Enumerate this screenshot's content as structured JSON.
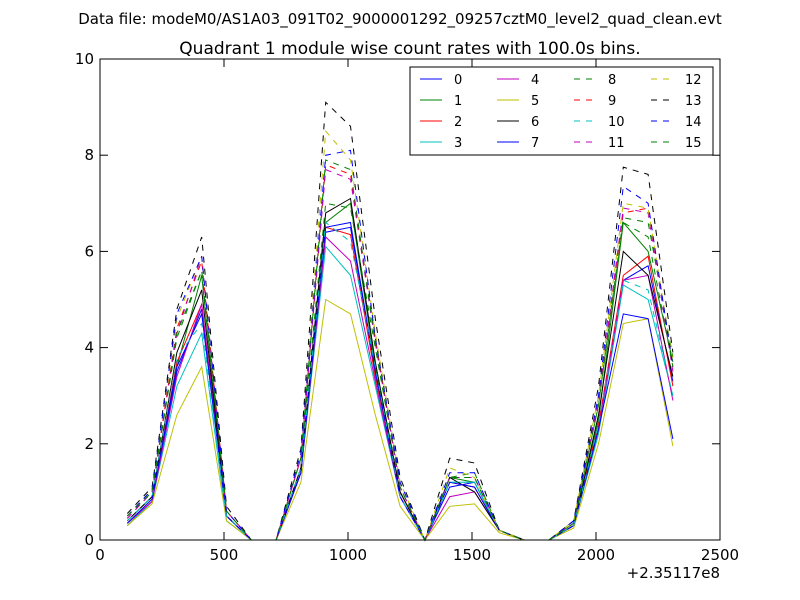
{
  "suptitle": "Data file: modeM0/AS1A03_091T02_9000001292_09257cztM0_level2_quad_clean.evt",
  "chart_data": {
    "type": "line",
    "title": "Quadrant 1 module wise count rates with 100.0s bins.",
    "xlabel": "",
    "ylabel": "",
    "x_offset_label": "+2.35117e8",
    "xlim": [
      0,
      2500
    ],
    "ylim": [
      0,
      10
    ],
    "xticks": [
      0,
      500,
      1000,
      1500,
      2000,
      2500
    ],
    "xtick_labels": [
      "0",
      "500",
      "1000",
      "1500",
      "2000",
      "2500"
    ],
    "yticks": [
      0,
      2,
      4,
      6,
      8,
      10
    ],
    "ytick_labels": [
      "0",
      "2",
      "4",
      "6",
      "8",
      "10"
    ],
    "grid": false,
    "legend_position": "top-right",
    "x": [
      110,
      210,
      310,
      410,
      510,
      610,
      710,
      810,
      910,
      1010,
      1110,
      1210,
      1310,
      1410,
      1510,
      1610,
      1710,
      1810,
      1910,
      2010,
      2110,
      2210,
      2310
    ],
    "series": [
      {
        "name": "0",
        "color": "#0000ff",
        "dash": "solid",
        "values": [
          0.3,
          0.8,
          3.5,
          4.8,
          0.5,
          0,
          0,
          1.4,
          6.4,
          6.5,
          3.5,
          0.9,
          0,
          1.1,
          1.2,
          0.2,
          0,
          0,
          0.3,
          2.3,
          5.4,
          5.7,
          3.3
        ]
      },
      {
        "name": "1",
        "color": "#008000",
        "dash": "solid",
        "values": [
          0.4,
          0.9,
          3.6,
          5.5,
          0.5,
          0,
          0,
          1.5,
          6.6,
          7.0,
          3.6,
          1.0,
          0,
          1.3,
          1.2,
          0.2,
          0,
          0,
          0.3,
          2.5,
          6.6,
          6.0,
          3.7
        ]
      },
      {
        "name": "2",
        "color": "#ff0000",
        "dash": "solid",
        "values": [
          0.35,
          0.8,
          3.7,
          4.9,
          0.5,
          0,
          0,
          1.4,
          6.5,
          6.35,
          3.4,
          1.0,
          0,
          1.2,
          1.1,
          0.2,
          0,
          0,
          0.3,
          2.4,
          5.5,
          5.9,
          3.2
        ]
      },
      {
        "name": "3",
        "color": "#00bfbf",
        "dash": "solid",
        "values": [
          0.3,
          0.8,
          3.2,
          4.3,
          0.4,
          0,
          0,
          1.4,
          6.1,
          5.5,
          3.2,
          0.9,
          0,
          1.2,
          1.2,
          0.2,
          0,
          0,
          0.3,
          2.2,
          5.3,
          5.0,
          3.0
        ]
      },
      {
        "name": "4",
        "color": "#bf00bf",
        "dash": "solid",
        "values": [
          0.35,
          0.8,
          3.4,
          4.9,
          0.5,
          0,
          0,
          1.4,
          6.3,
          5.8,
          3.3,
          0.9,
          0,
          0.9,
          1.0,
          0.2,
          0,
          0,
          0.3,
          2.3,
          5.4,
          5.5,
          2.9
        ]
      },
      {
        "name": "5",
        "color": "#bfbf00",
        "dash": "solid",
        "values": [
          0.3,
          0.75,
          2.6,
          3.6,
          0.4,
          0,
          0,
          1.2,
          5.0,
          4.7,
          2.6,
          0.7,
          0,
          0.7,
          0.75,
          0.15,
          0,
          0,
          0.25,
          2.0,
          4.5,
          4.6,
          1.95
        ]
      },
      {
        "name": "6",
        "color": "#000000",
        "dash": "solid",
        "values": [
          0.4,
          0.9,
          3.9,
          5.2,
          0.5,
          0,
          0,
          1.5,
          6.8,
          7.1,
          3.7,
          1.0,
          0,
          1.3,
          1.0,
          0.2,
          0,
          0,
          0.3,
          2.6,
          6.0,
          5.5,
          3.4
        ]
      },
      {
        "name": "7",
        "color": "#0000ff",
        "dash": "solid",
        "values": [
          0.35,
          0.85,
          3.6,
          4.7,
          0.5,
          0,
          0,
          1.4,
          6.5,
          6.6,
          3.5,
          0.9,
          0,
          1.2,
          1.1,
          0.2,
          0,
          0,
          0.3,
          2.3,
          4.7,
          4.6,
          2.1
        ]
      },
      {
        "name": "8",
        "color": "#008000",
        "dash": "dashed",
        "values": [
          0.5,
          1.0,
          4.2,
          5.6,
          0.6,
          0,
          0,
          1.7,
          7.0,
          6.9,
          4.0,
          1.1,
          0,
          1.3,
          1.4,
          0.2,
          0,
          0,
          0.35,
          2.8,
          6.7,
          6.6,
          3.8
        ]
      },
      {
        "name": "9",
        "color": "#ff0000",
        "dash": "dashed",
        "values": [
          0.45,
          1.0,
          4.4,
          5.8,
          0.6,
          0,
          0,
          1.7,
          7.8,
          7.6,
          4.2,
          1.1,
          0,
          1.3,
          1.3,
          0.2,
          0,
          0,
          0.35,
          2.9,
          6.8,
          6.9,
          3.6
        ]
      },
      {
        "name": "10",
        "color": "#00bfbf",
        "dash": "dashed",
        "values": [
          0.4,
          0.9,
          3.8,
          4.5,
          0.5,
          0,
          0,
          1.5,
          6.6,
          6.2,
          3.6,
          0.9,
          0,
          1.2,
          1.2,
          0.2,
          0,
          0,
          0.3,
          2.4,
          5.4,
          5.2,
          3.0
        ]
      },
      {
        "name": "11",
        "color": "#bf00bf",
        "dash": "dashed",
        "values": [
          0.45,
          1.0,
          4.3,
          5.9,
          0.6,
          0,
          0,
          1.7,
          7.7,
          7.5,
          4.1,
          1.1,
          0,
          1.3,
          1.3,
          0.2,
          0,
          0,
          0.35,
          2.9,
          6.9,
          6.8,
          3.5
        ]
      },
      {
        "name": "12",
        "color": "#bfbf00",
        "dash": "dashed",
        "values": [
          0.5,
          1.05,
          4.6,
          5.9,
          0.6,
          0,
          0,
          1.8,
          8.5,
          7.9,
          4.3,
          1.2,
          0,
          1.5,
          1.3,
          0.2,
          0,
          0,
          0.4,
          3.0,
          7.0,
          6.9,
          3.7
        ]
      },
      {
        "name": "13",
        "color": "#000000",
        "dash": "dashed",
        "values": [
          0.55,
          1.1,
          4.8,
          6.3,
          0.7,
          0,
          0,
          1.9,
          9.1,
          8.6,
          4.6,
          1.3,
          0,
          1.7,
          1.6,
          0.2,
          0,
          0,
          0.4,
          3.2,
          7.75,
          7.6,
          3.9
        ]
      },
      {
        "name": "14",
        "color": "#0000ff",
        "dash": "dashed",
        "values": [
          0.5,
          1.05,
          4.7,
          5.9,
          0.6,
          0,
          0,
          1.8,
          8.0,
          8.1,
          4.2,
          1.2,
          0,
          1.4,
          1.4,
          0.2,
          0,
          0,
          0.4,
          3.0,
          7.35,
          7.0,
          3.6
        ]
      },
      {
        "name": "15",
        "color": "#008000",
        "dash": "dashed",
        "values": [
          0.5,
          1.0,
          4.3,
          5.6,
          0.6,
          0,
          0,
          1.7,
          7.9,
          7.7,
          4.1,
          1.1,
          0,
          1.3,
          1.3,
          0.2,
          0,
          0,
          0.35,
          2.8,
          6.6,
          6.3,
          3.6
        ]
      }
    ]
  }
}
